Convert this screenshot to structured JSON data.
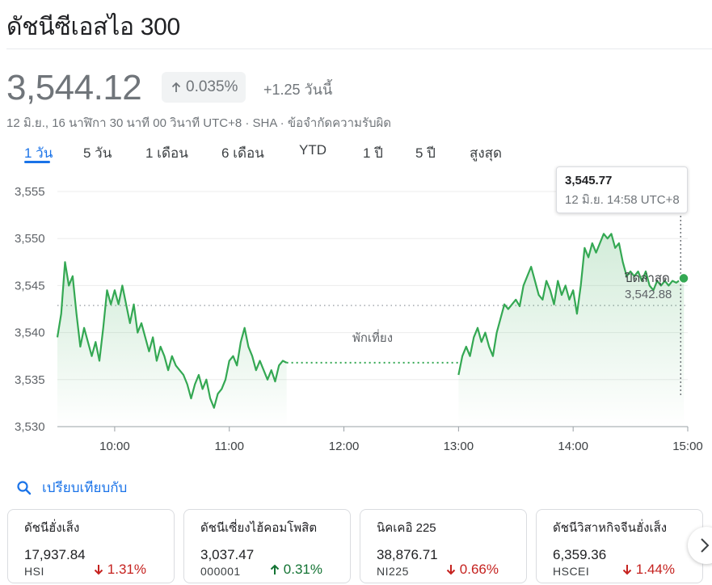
{
  "header": {
    "title": "ดัชนีซีเอสไอ 300"
  },
  "quote": {
    "price": "3,544.12",
    "change_percent": "0.035%",
    "change_absolute": "+1.25 วันนี้",
    "meta": "12 มิ.ย., 16 นาฬิกา 30 นาที 00 วินาที UTC+8 · SHA · ข้อจำกัดความรับผิด"
  },
  "tabs": [
    "1 วัน",
    "5 วัน",
    "1 เดือน",
    "6 เดือน",
    "YTD",
    "1 ปี",
    "5 ปี",
    "สูงสุด"
  ],
  "active_tab": "1 วัน",
  "tooltip": {
    "value": "3,545.77",
    "time": "12 มิ.ย. 14:58 UTC+8"
  },
  "close_label": {
    "label": "ปิดล่าสุด",
    "value": "3,542.88"
  },
  "lunch_label": "พักเที่ยง",
  "chart_data": {
    "type": "line",
    "xlabel": "",
    "ylabel": "",
    "xlim": [
      "09:30",
      "15:00"
    ],
    "ylim": [
      3530,
      3555
    ],
    "y_ticks": [
      "3,555",
      "3,550",
      "3,545",
      "3,540",
      "3,535",
      "3,530"
    ],
    "x_ticks": [
      "10:00",
      "11:00",
      "12:00",
      "13:00",
      "14:00",
      "15:00"
    ],
    "previous_close": 3542.88,
    "lunch_break": [
      "11:30",
      "13:00"
    ],
    "grid": true,
    "color": "#34a853",
    "series": [
      {
        "points": [
          [
            "09:30",
            3539.5
          ],
          [
            "09:32",
            3542.0
          ],
          [
            "09:34",
            3547.5
          ],
          [
            "09:36",
            3545.0
          ],
          [
            "09:38",
            3546.0
          ],
          [
            "09:40",
            3542.0
          ],
          [
            "09:42",
            3538.5
          ],
          [
            "09:44",
            3540.5
          ],
          [
            "09:46",
            3539.0
          ],
          [
            "09:48",
            3537.5
          ],
          [
            "09:50",
            3539.0
          ],
          [
            "09:52",
            3537.0
          ],
          [
            "09:54",
            3540.5
          ],
          [
            "09:56",
            3544.5
          ],
          [
            "09:58",
            3543.0
          ],
          [
            "10:00",
            3544.5
          ],
          [
            "10:02",
            3543.0
          ],
          [
            "10:04",
            3545.0
          ],
          [
            "10:06",
            3543.0
          ],
          [
            "10:08",
            3541.0
          ],
          [
            "10:10",
            3543.0
          ],
          [
            "10:12",
            3540.0
          ],
          [
            "10:14",
            3541.0
          ],
          [
            "10:16",
            3539.5
          ],
          [
            "10:18",
            3538.0
          ],
          [
            "10:20",
            3539.5
          ],
          [
            "10:22",
            3537.0
          ],
          [
            "10:24",
            3538.5
          ],
          [
            "10:26",
            3537.5
          ],
          [
            "10:28",
            3536.0
          ],
          [
            "10:30",
            3537.5
          ],
          [
            "10:32",
            3536.5
          ],
          [
            "10:34",
            3536.0
          ],
          [
            "10:36",
            3535.5
          ],
          [
            "10:38",
            3534.5
          ],
          [
            "10:40",
            3533.0
          ],
          [
            "10:42",
            3534.5
          ],
          [
            "10:44",
            3535.5
          ],
          [
            "10:46",
            3534.0
          ],
          [
            "10:48",
            3535.0
          ],
          [
            "10:50",
            3533.0
          ],
          [
            "10:52",
            3532.0
          ],
          [
            "10:54",
            3533.5
          ],
          [
            "10:56",
            3534.0
          ],
          [
            "10:58",
            3535.0
          ],
          [
            "11:00",
            3537.0
          ],
          [
            "11:02",
            3537.5
          ],
          [
            "11:04",
            3536.5
          ],
          [
            "11:06",
            3539.0
          ],
          [
            "11:08",
            3540.5
          ],
          [
            "11:10",
            3538.5
          ],
          [
            "11:12",
            3537.5
          ],
          [
            "11:14",
            3536.0
          ],
          [
            "11:16",
            3537.0
          ],
          [
            "11:18",
            3536.0
          ],
          [
            "11:20",
            3535.0
          ],
          [
            "11:22",
            3536.0
          ],
          [
            "11:24",
            3534.8
          ],
          [
            "11:26",
            3536.5
          ],
          [
            "11:28",
            3537.0
          ],
          [
            "11:30",
            3536.8
          ],
          [
            "13:00",
            3535.5
          ],
          [
            "13:02",
            3537.5
          ],
          [
            "13:04",
            3538.5
          ],
          [
            "13:06",
            3537.5
          ],
          [
            "13:08",
            3539.5
          ],
          [
            "13:10",
            3540.5
          ],
          [
            "13:12",
            3539.0
          ],
          [
            "13:14",
            3540.0
          ],
          [
            "13:16",
            3538.5
          ],
          [
            "13:18",
            3537.5
          ],
          [
            "13:20",
            3540.0
          ],
          [
            "13:22",
            3541.5
          ],
          [
            "13:24",
            3543.0
          ],
          [
            "13:26",
            3542.5
          ],
          [
            "13:28",
            3543.0
          ],
          [
            "13:30",
            3543.5
          ],
          [
            "13:32",
            3542.8
          ],
          [
            "13:34",
            3545.0
          ],
          [
            "13:36",
            3546.0
          ],
          [
            "13:38",
            3547.0
          ],
          [
            "13:40",
            3545.5
          ],
          [
            "13:42",
            3544.0
          ],
          [
            "13:44",
            3543.5
          ],
          [
            "13:46",
            3545.5
          ],
          [
            "13:48",
            3544.5
          ],
          [
            "13:50",
            3543.0
          ],
          [
            "13:52",
            3545.5
          ],
          [
            "13:54",
            3544.0
          ],
          [
            "13:56",
            3545.0
          ],
          [
            "13:58",
            3543.5
          ],
          [
            "14:00",
            3544.5
          ],
          [
            "14:02",
            3542.0
          ],
          [
            "14:04",
            3545.0
          ],
          [
            "14:06",
            3549.0
          ],
          [
            "14:08",
            3548.0
          ],
          [
            "14:10",
            3549.5
          ],
          [
            "14:12",
            3548.5
          ],
          [
            "14:14",
            3549.5
          ],
          [
            "14:16",
            3550.5
          ],
          [
            "14:18",
            3550.0
          ],
          [
            "14:20",
            3550.5
          ],
          [
            "14:22",
            3549.0
          ],
          [
            "14:24",
            3549.5
          ],
          [
            "14:26",
            3547.5
          ],
          [
            "14:28",
            3546.0
          ],
          [
            "14:30",
            3546.5
          ],
          [
            "14:32",
            3546.0
          ],
          [
            "14:34",
            3546.5
          ],
          [
            "14:36",
            3545.5
          ],
          [
            "14:38",
            3546.5
          ],
          [
            "14:40",
            3545.0
          ],
          [
            "14:42",
            3544.5
          ],
          [
            "14:44",
            3545.5
          ],
          [
            "14:46",
            3545.0
          ],
          [
            "14:48",
            3545.5
          ],
          [
            "14:50",
            3545.0
          ],
          [
            "14:52",
            3545.5
          ],
          [
            "14:54",
            3545.3
          ],
          [
            "14:56",
            3545.6
          ],
          [
            "14:58",
            3545.77
          ]
        ]
      }
    ]
  },
  "compare": {
    "label": "เปรียบเทียบกับ",
    "icon": "search-icon"
  },
  "cards": [
    {
      "name": "ดัชนีฮั่งเส็ง",
      "value": "17,937.84",
      "symbol": "HSI",
      "change": "1.31%",
      "direction": "down"
    },
    {
      "name": "ดัชนีเซี่ยงไฮ้คอมโพสิต",
      "value": "3,037.47",
      "symbol": "000001",
      "change": "0.31%",
      "direction": "up"
    },
    {
      "name": "นิคเคอิ 225",
      "value": "38,876.71",
      "symbol": "NI225",
      "change": "0.66%",
      "direction": "down"
    },
    {
      "name": "ดัชนีวิสาหกิจจีนฮั่งเส็ง",
      "value": "6,359.36",
      "symbol": "HSCEI",
      "change": "1.44%",
      "direction": "down"
    }
  ],
  "colors": {
    "accent": "#1a73e8",
    "positive": "#137333",
    "negative": "#c5221f",
    "line": "#34a853"
  }
}
